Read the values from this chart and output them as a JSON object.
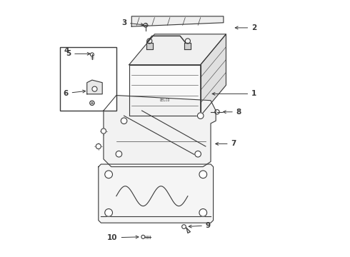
{
  "bg_color": "#ffffff",
  "line_color": "#3a3a3a",
  "fig_width": 4.9,
  "fig_height": 3.6,
  "dpi": 100
}
